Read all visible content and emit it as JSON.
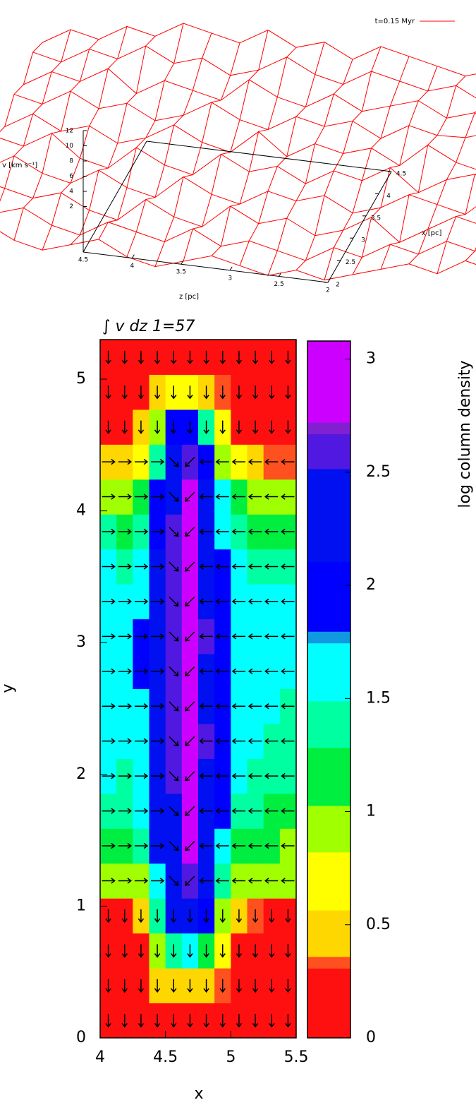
{
  "chart_data": [
    {
      "type": "surface",
      "legend": "t=0.15 Myr",
      "color": "#ff0000",
      "vlabel": "v [km s⁻¹]",
      "zlabel": "z [pc]",
      "xlabel": "x [pc]",
      "vlim": [
        -4,
        12
      ],
      "vticks": [
        2,
        4,
        6,
        8,
        10,
        12
      ],
      "zlim": [
        2,
        4.5
      ],
      "zticks": [
        4.5,
        4,
        3.5,
        3,
        2.5,
        2
      ],
      "xlim": [
        2,
        4.5
      ],
      "xticks": [
        2,
        2.5,
        3,
        3.5,
        4,
        4.5
      ],
      "values": [
        [
          5,
          6,
          4,
          3,
          4,
          5,
          3,
          2,
          3,
          4,
          3,
          2,
          3,
          2,
          3,
          4,
          5,
          4,
          6,
          5
        ],
        [
          6,
          5,
          6,
          4,
          3,
          5,
          4,
          3,
          5,
          3,
          4,
          3,
          2,
          4,
          3,
          5,
          4,
          6,
          5,
          7
        ],
        [
          7,
          6,
          5,
          6,
          4,
          3,
          6,
          4,
          3,
          6,
          4,
          5,
          3,
          4,
          6,
          3,
          5,
          7,
          6,
          6
        ],
        [
          6,
          8,
          6,
          5,
          7,
          5,
          4,
          7,
          5,
          4,
          6,
          5,
          6,
          4,
          5,
          7,
          6,
          5,
          8,
          7
        ],
        [
          8,
          7,
          9,
          6,
          5,
          8,
          6,
          5,
          8,
          6,
          7,
          5,
          7,
          6,
          8,
          5,
          7,
          8,
          6,
          8
        ],
        [
          7,
          9,
          7,
          8,
          6,
          7,
          9,
          7,
          6,
          9,
          6,
          8,
          7,
          8,
          6,
          9,
          7,
          6,
          9,
          7
        ],
        [
          9,
          8,
          10,
          8,
          9,
          7,
          8,
          10,
          8,
          7,
          9,
          8,
          9,
          7,
          9,
          8,
          8,
          9,
          7,
          8
        ],
        [
          8,
          10,
          9,
          11,
          8,
          10,
          9,
          8,
          11,
          9,
          8,
          10,
          8,
          9,
          10,
          8,
          9,
          7,
          8,
          7
        ],
        [
          10,
          9,
          11,
          10,
          12,
          10,
          11,
          9,
          10,
          12,
          10,
          9,
          11,
          10,
          9,
          10,
          8,
          9,
          8,
          7
        ],
        [
          9,
          11,
          10,
          12,
          11,
          13,
          12,
          11,
          13,
          11,
          12,
          10,
          12,
          11,
          10,
          9,
          10,
          8,
          9,
          8
        ]
      ]
    },
    {
      "type": "heatmap",
      "title": "∫ v dz 1=57",
      "xlabel": "x",
      "ylabel": "y",
      "colorbar_label": "log column density",
      "xlim": [
        4,
        5.5
      ],
      "xticks": [
        4,
        4.5,
        5,
        5.5
      ],
      "ylim": [
        0,
        5.3
      ],
      "yticks": [
        0,
        1,
        2,
        3,
        4,
        5
      ],
      "clim": [
        0,
        3.08
      ],
      "cticks": [
        0,
        0.5,
        1,
        1.5,
        2,
        2.5,
        3
      ],
      "colormap": [
        [
          0,
          "#ff1010"
        ],
        [
          0.3,
          "#ff5020"
        ],
        [
          0.35,
          "#ffd700"
        ],
        [
          0.55,
          "#ffff00"
        ],
        [
          0.8,
          "#a0ff00"
        ],
        [
          1.05,
          "#00ee40"
        ],
        [
          1.3,
          "#00ffa0"
        ],
        [
          1.5,
          "#00ffff"
        ],
        [
          1.75,
          "#1098e0"
        ],
        [
          1.8,
          "#0000ff"
        ],
        [
          2.1,
          "#0010f0"
        ],
        [
          2.5,
          "#5018e0"
        ],
        [
          2.65,
          "#8020d0"
        ],
        [
          2.7,
          "#cc00ff"
        ],
        [
          3.08,
          "#cc00ff"
        ]
      ],
      "xbins": [
        4,
        4.125,
        4.25,
        4.375,
        4.5,
        4.625,
        4.75,
        4.875,
        5,
        5.125,
        5.25,
        5.375,
        5.5
      ],
      "ybins": [
        0,
        0.265,
        0.53,
        0.795,
        1.06,
        1.325,
        1.59,
        1.855,
        2.12,
        2.385,
        2.65,
        2.915,
        3.18,
        3.445,
        3.71,
        3.975,
        4.24,
        4.505,
        4.77,
        5.035,
        5.3
      ],
      "values": [
        [
          0.1,
          0.1,
          0.1,
          0.1,
          0.1,
          0.1,
          0.1,
          0.1,
          0.1,
          0.1,
          0.1,
          0.1
        ],
        [
          0.1,
          0.1,
          0.1,
          0.4,
          0.5,
          0.5,
          0.4,
          0.3,
          0.1,
          0.1,
          0.1,
          0.1
        ],
        [
          0.1,
          0.1,
          0.2,
          0.8,
          1.4,
          1.6,
          1.2,
          0.6,
          0.1,
          0.1,
          0.1,
          0.1
        ],
        [
          0.2,
          0.2,
          0.5,
          1.4,
          2.3,
          2.4,
          2.0,
          1.0,
          0.5,
          0.3,
          0.2,
          0.2
        ],
        [
          0.9,
          0.8,
          1.0,
          1.6,
          2.3,
          2.6,
          2.2,
          1.3,
          1.0,
          0.9,
          0.8,
          0.8
        ],
        [
          1.2,
          1.1,
          1.3,
          2.1,
          2.4,
          2.8,
          2.3,
          1.6,
          1.2,
          1.1,
          1.1,
          1.0
        ],
        [
          1.4,
          1.3,
          1.5,
          2.1,
          2.4,
          2.9,
          2.4,
          1.8,
          1.4,
          1.3,
          1.2,
          1.2
        ],
        [
          1.5,
          1.4,
          1.6,
          2.2,
          2.5,
          2.9,
          2.4,
          1.8,
          1.5,
          1.4,
          1.3,
          1.3
        ],
        [
          1.6,
          1.5,
          1.7,
          2.2,
          2.6,
          3.0,
          2.5,
          1.9,
          1.6,
          1.5,
          1.4,
          1.4
        ],
        [
          1.6,
          1.5,
          1.7,
          2.2,
          2.6,
          3.0,
          2.4,
          1.9,
          1.6,
          1.5,
          1.5,
          1.4
        ],
        [
          1.6,
          1.6,
          1.8,
          2.2,
          2.6,
          3.0,
          2.4,
          1.9,
          1.7,
          1.6,
          1.5,
          1.5
        ],
        [
          1.6,
          1.6,
          1.9,
          2.2,
          2.6,
          3.0,
          2.5,
          2.0,
          1.7,
          1.6,
          1.5,
          1.5
        ],
        [
          1.6,
          1.5,
          1.7,
          2.2,
          2.6,
          3.0,
          2.4,
          1.9,
          1.6,
          1.5,
          1.5,
          1.5
        ],
        [
          1.5,
          1.4,
          1.6,
          2.1,
          2.6,
          2.9,
          2.4,
          1.8,
          1.5,
          1.4,
          1.4,
          1.4
        ],
        [
          1.3,
          1.2,
          1.4,
          2.0,
          2.5,
          2.8,
          2.3,
          1.7,
          1.3,
          1.2,
          1.2,
          1.2
        ],
        [
          1.0,
          0.9,
          1.2,
          1.8,
          2.4,
          2.7,
          2.2,
          1.5,
          1.1,
          1.0,
          0.9,
          0.9
        ],
        [
          0.5,
          0.4,
          0.6,
          1.3,
          2.3,
          2.5,
          2.0,
          1.0,
          0.6,
          0.4,
          0.3,
          0.3
        ],
        [
          0.1,
          0.1,
          0.4,
          0.8,
          1.8,
          2.0,
          1.4,
          0.6,
          0.2,
          0.1,
          0.1,
          0.1
        ],
        [
          0.1,
          0.1,
          0.2,
          0.4,
          0.6,
          0.7,
          0.5,
          0.3,
          0.1,
          0.1,
          0.1,
          0.1
        ],
        [
          0.1,
          0.1,
          0.1,
          0.1,
          0.1,
          0.1,
          0.1,
          0.1,
          0.1,
          0.1,
          0.1,
          0.1
        ]
      ],
      "vector_angles": [
        [
          -90,
          -90,
          -90,
          -90,
          -90,
          -90,
          -90,
          -90,
          -90,
          -90,
          -90,
          -90
        ],
        [
          -90,
          -90,
          -90,
          -90,
          -90,
          -90,
          -90,
          -90,
          -90,
          -90,
          -90,
          -90
        ],
        [
          -90,
          -90,
          -90,
          -90,
          -90,
          -90,
          -90,
          -90,
          -90,
          -90,
          -90,
          -90
        ],
        [
          -90,
          -90,
          -90,
          -90,
          -90,
          -90,
          -90,
          -90,
          -90,
          -90,
          -90,
          -90
        ],
        [
          0,
          0,
          0,
          0,
          -45,
          -135,
          180,
          180,
          180,
          180,
          180,
          180
        ],
        [
          0,
          0,
          0,
          0,
          -45,
          -135,
          180,
          180,
          180,
          180,
          180,
          180
        ],
        [
          0,
          0,
          0,
          0,
          -45,
          -135,
          180,
          180,
          180,
          180,
          180,
          180
        ],
        [
          0,
          0,
          0,
          0,
          -45,
          -135,
          180,
          180,
          180,
          180,
          180,
          180
        ],
        [
          0,
          0,
          0,
          0,
          -45,
          -135,
          180,
          180,
          180,
          180,
          180,
          180
        ],
        [
          0,
          0,
          0,
          0,
          -45,
          -135,
          180,
          180,
          180,
          180,
          180,
          180
        ],
        [
          0,
          0,
          0,
          0,
          -45,
          -135,
          180,
          180,
          180,
          180,
          180,
          180
        ],
        [
          0,
          0,
          0,
          0,
          -45,
          -135,
          180,
          180,
          180,
          180,
          180,
          180
        ],
        [
          0,
          0,
          0,
          0,
          -45,
          -135,
          180,
          180,
          180,
          180,
          180,
          180
        ],
        [
          0,
          0,
          0,
          0,
          -45,
          -135,
          180,
          180,
          180,
          180,
          180,
          180
        ],
        [
          0,
          0,
          0,
          0,
          -45,
          -135,
          180,
          180,
          180,
          180,
          180,
          180
        ],
        [
          0,
          0,
          0,
          0,
          -45,
          -135,
          180,
          180,
          180,
          180,
          180,
          180
        ],
        [
          0,
          0,
          0,
          0,
          -45,
          -135,
          180,
          180,
          180,
          180,
          180,
          180
        ],
        [
          -90,
          -90,
          -90,
          -90,
          -90,
          -90,
          -90,
          -90,
          -90,
          -90,
          -90,
          -90
        ],
        [
          -90,
          -90,
          -90,
          -90,
          -90,
          -90,
          -90,
          -90,
          -90,
          -90,
          -90,
          -90
        ],
        [
          -90,
          -90,
          -90,
          -90,
          -90,
          -90,
          -90,
          -90,
          -90,
          -90,
          -90,
          -90
        ]
      ]
    }
  ]
}
